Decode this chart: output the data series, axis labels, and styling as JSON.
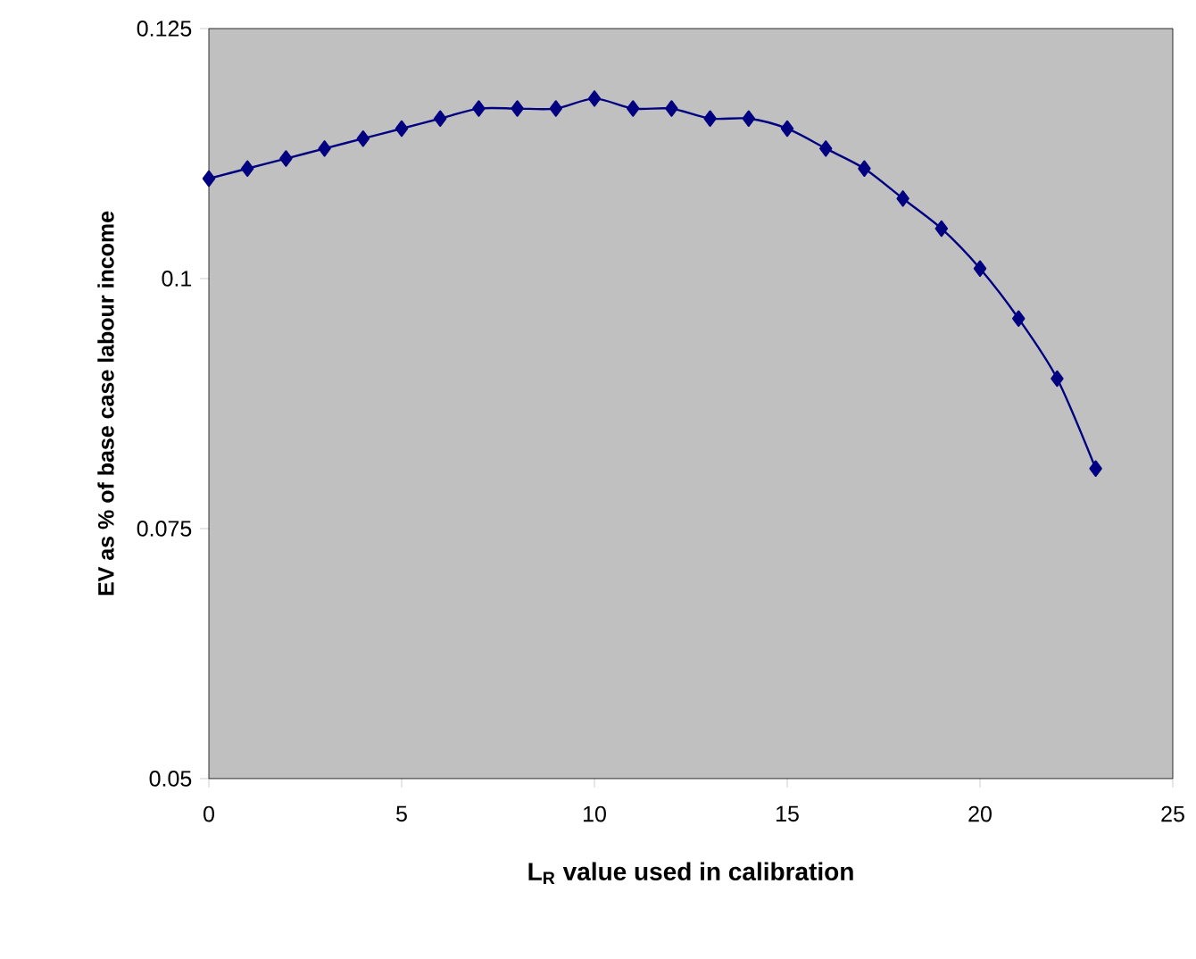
{
  "chart_data": {
    "type": "line",
    "xlabel": "L$_{R}$ value used in calibration",
    "ylabel": "EV as % of base case labour income",
    "x": [
      0,
      1,
      2,
      3,
      4,
      5,
      6,
      7,
      8,
      9,
      10,
      11,
      12,
      13,
      14,
      15,
      16,
      17,
      18,
      19,
      20,
      21,
      22,
      23
    ],
    "series": [
      {
        "color": "#000080",
        "values": [
          0.11,
          0.111,
          0.112,
          0.113,
          0.114,
          0.115,
          0.116,
          0.117,
          0.117,
          0.117,
          0.118,
          0.117,
          0.117,
          0.116,
          0.116,
          0.115,
          0.113,
          0.111,
          0.108,
          0.105,
          0.101,
          0.096,
          0.09,
          0.081
        ]
      }
    ],
    "xlim": [
      0,
      25
    ],
    "ylim": [
      0.05,
      0.125
    ],
    "xticks": [
      0,
      5,
      10,
      15,
      20,
      25
    ],
    "yticks": [
      0.05,
      0.075,
      0.1,
      0.125
    ],
    "grid": false,
    "marker": "diamond",
    "line_style": "solid"
  }
}
